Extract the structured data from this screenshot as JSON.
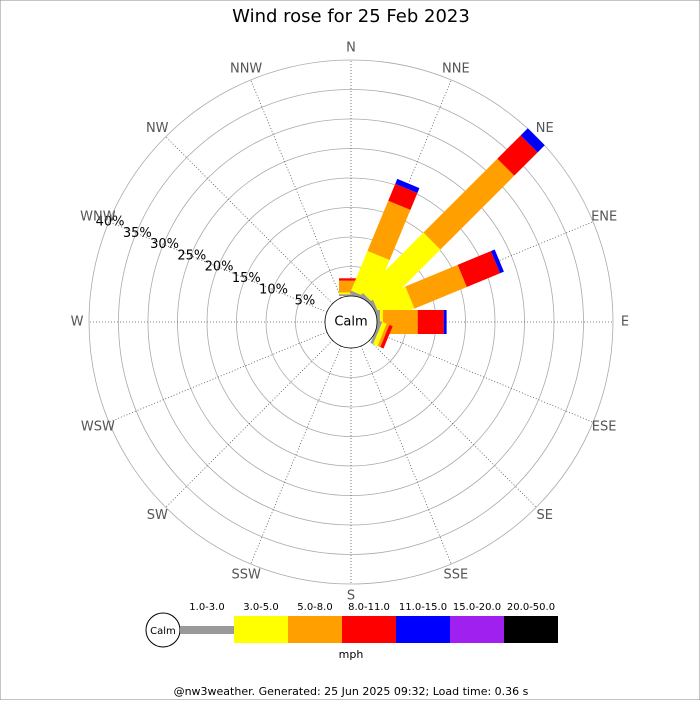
{
  "chart_data": {
    "type": "windrose",
    "title": "Wind rose for 25 Feb 2023",
    "categories": [
      "N",
      "NNE",
      "NE",
      "ENE",
      "E",
      "ESE",
      "SE",
      "SSE",
      "S",
      "SSW",
      "SW",
      "WSW",
      "W",
      "WNW",
      "NW",
      "NNW"
    ],
    "series": [
      {
        "name": "1.0-3.0",
        "color": "#999999",
        "values": [
          0.3,
          0.5,
          0.5,
          0.5,
          0.5,
          0.5,
          0,
          0,
          0,
          0,
          0,
          0,
          0,
          0,
          0,
          0
        ]
      },
      {
        "name": "3.0-5.0",
        "color": "#ffff00",
        "values": [
          0.3,
          7.3,
          14.5,
          5.9,
          0.5,
          0.8,
          0,
          0,
          0,
          0,
          0,
          0,
          0,
          0,
          0,
          0
        ]
      },
      {
        "name": "5.0-8.0",
        "color": "#ff9f00",
        "values": [
          2.0,
          9.2,
          17.7,
          9.6,
          5.9,
          0.5,
          0,
          0,
          0,
          0,
          0,
          0,
          0,
          0,
          0,
          0
        ]
      },
      {
        "name": "8.0-11.0",
        "color": "#ff0000",
        "values": [
          0.4,
          3.1,
          5.6,
          6.1,
          4.4,
          0.6,
          0,
          0,
          0,
          0,
          0,
          0,
          0,
          0,
          0,
          0
        ]
      },
      {
        "name": "11.0-15.0",
        "color": "#0000ff",
        "values": [
          0,
          0.9,
          1.7,
          0.7,
          0.5,
          0,
          0,
          0,
          0,
          0,
          0,
          0,
          0,
          0,
          0,
          0
        ]
      },
      {
        "name": "15.0-20.0",
        "color": "#a020f0",
        "values": [
          0,
          0,
          0,
          0,
          0,
          0,
          0,
          0,
          0,
          0,
          0,
          0,
          0,
          0,
          0,
          0
        ]
      },
      {
        "name": "20.0-50.0",
        "color": "#000000",
        "values": [
          0,
          0,
          0,
          0,
          0,
          0,
          0,
          0,
          0,
          0,
          0,
          0,
          0,
          0,
          0,
          0
        ]
      }
    ],
    "ylim": [
      0,
      40
    ],
    "yticks": [
      {
        "value": 5,
        "label": "5%"
      },
      {
        "value": 10,
        "label": "10%"
      },
      {
        "value": 15,
        "label": "15%"
      },
      {
        "value": 20,
        "label": "20%"
      },
      {
        "value": 25,
        "label": "25%"
      },
      {
        "value": 30,
        "label": "30%"
      },
      {
        "value": 35,
        "label": "35%"
      },
      {
        "value": 40,
        "label": "40%"
      }
    ],
    "center_label": "Calm",
    "unit_label": "mph",
    "footer": "@nw3weather. Generated: 25 Jun 2025 09:32; Load time: 0.36 s"
  }
}
